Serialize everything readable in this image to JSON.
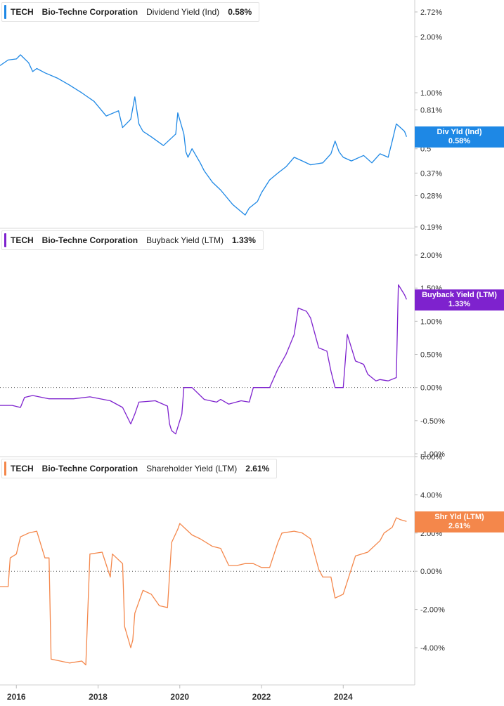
{
  "panels": [
    {
      "ticker": "TECH",
      "company": "Bio-Techne Corporation",
      "metric": "Dividend Yield (Ind)",
      "value_text": "0.58%",
      "badge_line1": "Div Yld (Ind)",
      "badge_line2": "0.58%",
      "color": "#1e88e5",
      "tick_labels": [
        "2.72%",
        "2.00%",
        "1.00%",
        "0.81%",
        "0.5",
        "0.37%",
        "0.28%",
        "0.19%"
      ]
    },
    {
      "ticker": "TECH",
      "company": "Bio-Techne Corporation",
      "metric": "Buyback Yield (LTM)",
      "value_text": "1.33%",
      "badge_line1": "Buyback Yield (LTM)",
      "badge_line2": "1.33%",
      "color": "#7e22ce",
      "tick_labels": [
        "2.00%",
        "1.50%",
        "1.00%",
        "0.50%",
        "0.00%",
        "-0.50%",
        "-1.00%"
      ]
    },
    {
      "ticker": "TECH",
      "company": "Bio-Techne Corporation",
      "metric": "Shareholder Yield (LTM)",
      "value_text": "2.61%",
      "badge_line1": "Shr Yld (LTM)",
      "badge_line2": "2.61%",
      "color": "#f4874b",
      "tick_labels": [
        "6.00%",
        "4.00%",
        "2.00%",
        "0.00%",
        "-2.00%",
        "-4.00%"
      ]
    }
  ],
  "x_tick_labels": [
    "2016",
    "2018",
    "2020",
    "2022",
    "2024"
  ],
  "chart_data": [
    {
      "type": "line",
      "series": [
        {
          "name": "Dividend Yield (Ind)",
          "color": "#1e88e5",
          "x": [
            2015.6,
            2015.8,
            2016.0,
            2016.1,
            2016.3,
            2016.4,
            2016.5,
            2016.7,
            2017.0,
            2017.3,
            2017.6,
            2017.9,
            2018.2,
            2018.5,
            2018.6,
            2018.8,
            2018.9,
            2019.0,
            2019.1,
            2019.2,
            2019.3,
            2019.6,
            2019.9,
            2019.95,
            2020.1,
            2020.15,
            2020.2,
            2020.3,
            2020.5,
            2020.6,
            2020.8,
            2021.0,
            2021.3,
            2021.6,
            2021.7,
            2021.9,
            2022.0,
            2022.2,
            2022.4,
            2022.6,
            2022.8,
            2023.0,
            2023.2,
            2023.5,
            2023.7,
            2023.8,
            2023.9,
            2024.0,
            2024.2,
            2024.5,
            2024.7,
            2024.9,
            2025.1,
            2025.2,
            2025.3,
            2025.4,
            2025.5,
            2025.55
          ],
          "y": [
            1.4,
            1.5,
            1.52,
            1.6,
            1.45,
            1.3,
            1.35,
            1.28,
            1.2,
            1.1,
            1.0,
            0.9,
            0.75,
            0.8,
            0.65,
            0.72,
            0.95,
            0.68,
            0.62,
            0.6,
            0.58,
            0.52,
            0.6,
            0.78,
            0.6,
            0.48,
            0.45,
            0.5,
            0.42,
            0.38,
            0.33,
            0.3,
            0.25,
            0.22,
            0.24,
            0.26,
            0.29,
            0.34,
            0.37,
            0.4,
            0.45,
            0.43,
            0.41,
            0.42,
            0.47,
            0.55,
            0.48,
            0.45,
            0.43,
            0.46,
            0.42,
            0.47,
            0.45,
            0.55,
            0.68,
            0.65,
            0.62,
            0.58
          ],
          "log_scale": true
        }
      ],
      "ylim": [
        0.19,
        2.72
      ]
    },
    {
      "type": "line",
      "series": [
        {
          "name": "Buyback Yield (LTM)",
          "color": "#7e22ce",
          "x": [
            2015.6,
            2015.9,
            2016.1,
            2016.2,
            2016.4,
            2016.8,
            2017.4,
            2017.8,
            2018.3,
            2018.6,
            2018.8,
            2018.9,
            2019.0,
            2019.4,
            2019.7,
            2019.75,
            2019.8,
            2019.9,
            2020.05,
            2020.1,
            2020.3,
            2020.6,
            2020.9,
            2021.0,
            2021.2,
            2021.5,
            2021.7,
            2021.8,
            2022.0,
            2022.2,
            2022.4,
            2022.6,
            2022.8,
            2022.9,
            2023.1,
            2023.2,
            2023.4,
            2023.6,
            2023.7,
            2023.8,
            2023.9,
            2024.0,
            2024.1,
            2024.3,
            2024.5,
            2024.6,
            2024.8,
            2024.9,
            2025.1,
            2025.3,
            2025.35,
            2025.5,
            2025.55
          ],
          "y": [
            -0.27,
            -0.27,
            -0.3,
            -0.15,
            -0.12,
            -0.17,
            -0.17,
            -0.14,
            -0.2,
            -0.3,
            -0.55,
            -0.4,
            -0.22,
            -0.2,
            -0.28,
            -0.55,
            -0.65,
            -0.7,
            -0.4,
            0.0,
            0.0,
            -0.18,
            -0.22,
            -0.18,
            -0.25,
            -0.2,
            -0.22,
            0.0,
            0.0,
            0.0,
            0.28,
            0.5,
            0.8,
            1.2,
            1.15,
            1.05,
            0.6,
            0.55,
            0.25,
            0.0,
            0.0,
            0.0,
            0.8,
            0.4,
            0.35,
            0.2,
            0.1,
            0.12,
            0.1,
            0.15,
            1.55,
            1.4,
            1.33
          ],
          "log_scale": false
        }
      ],
      "ylim": [
        -1.0,
        2.2
      ]
    },
    {
      "type": "line",
      "series": [
        {
          "name": "Shareholder Yield (LTM)",
          "color": "#f4874b",
          "x": [
            2015.6,
            2015.8,
            2015.85,
            2016.0,
            2016.1,
            2016.3,
            2016.5,
            2016.7,
            2016.8,
            2016.85,
            2017.3,
            2017.6,
            2017.7,
            2017.8,
            2018.1,
            2018.3,
            2018.35,
            2018.6,
            2018.65,
            2018.8,
            2018.85,
            2018.9,
            2019.0,
            2019.1,
            2019.3,
            2019.5,
            2019.7,
            2019.8,
            2019.95,
            2020.0,
            2020.15,
            2020.3,
            2020.5,
            2020.8,
            2021.0,
            2021.2,
            2021.4,
            2021.6,
            2021.8,
            2022.0,
            2022.2,
            2022.4,
            2022.5,
            2022.8,
            2023.0,
            2023.2,
            2023.4,
            2023.5,
            2023.7,
            2023.8,
            2023.9,
            2024.0,
            2024.3,
            2024.6,
            2024.9,
            2025.0,
            2025.2,
            2025.3,
            2025.4,
            2025.55
          ],
          "y": [
            -0.8,
            -0.8,
            0.7,
            0.9,
            1.8,
            2.0,
            2.1,
            0.7,
            0.7,
            -4.6,
            -4.8,
            -4.7,
            -4.9,
            0.9,
            1.0,
            -0.3,
            0.9,
            0.4,
            -2.9,
            -4.0,
            -3.6,
            -2.2,
            -1.6,
            -1.0,
            -1.2,
            -1.8,
            -1.9,
            1.5,
            2.2,
            2.5,
            2.2,
            1.9,
            1.7,
            1.3,
            1.2,
            0.3,
            0.3,
            0.4,
            0.4,
            0.2,
            0.2,
            1.5,
            2.0,
            2.1,
            2.0,
            1.7,
            0.1,
            -0.3,
            -0.3,
            -1.4,
            -1.3,
            -1.2,
            0.8,
            1.0,
            1.6,
            2.0,
            2.3,
            2.8,
            2.7,
            2.61
          ],
          "log_scale": false
        }
      ],
      "ylim": [
        -5.0,
        6.0
      ]
    }
  ]
}
